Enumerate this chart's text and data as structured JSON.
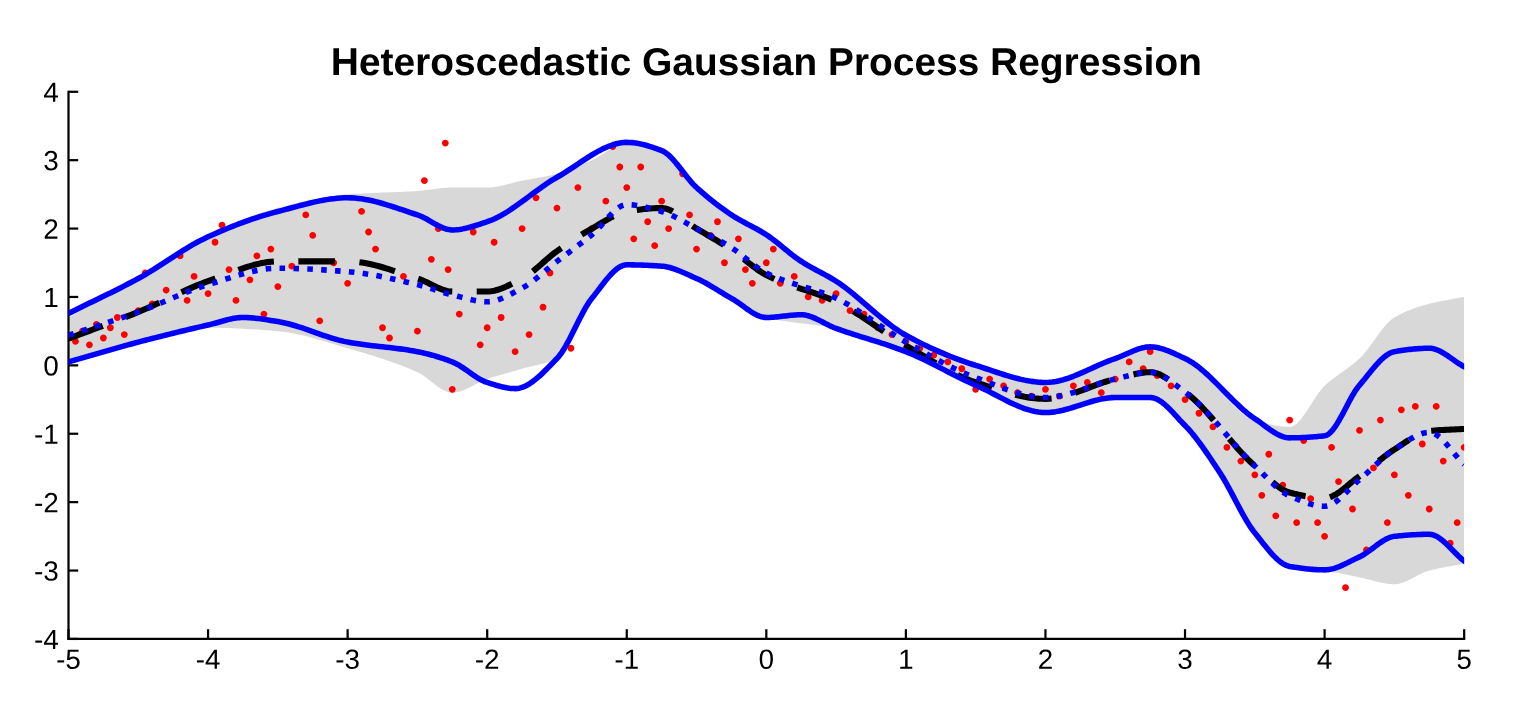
{
  "chart_data": {
    "type": "line",
    "title": "Heteroscedastic Gaussian Process Regression",
    "xlim": [
      -5,
      5
    ],
    "ylim": [
      -4,
      4
    ],
    "xticks": [
      -5,
      -4,
      -3,
      -2,
      -1,
      0,
      1,
      2,
      3,
      4,
      5
    ],
    "yticks": [
      -4,
      -3,
      -2,
      -1,
      0,
      1,
      2,
      3,
      4
    ],
    "grid": false,
    "legend": false,
    "series": [
      {
        "color": "#000000",
        "line_style": "dashed",
        "x": [
          -5,
          -4.5,
          -4,
          -3.5,
          -3,
          -2.5,
          -2.25,
          -2,
          -1.75,
          -1.5,
          -1.25,
          -1,
          -0.75,
          -0.5,
          -0.25,
          0,
          0.5,
          1,
          1.5,
          2,
          2.5,
          2.75,
          3,
          3.5,
          3.75,
          4,
          4.25,
          4.5,
          4.75,
          5
        ],
        "values": [
          0.39,
          0.78,
          1.23,
          1.52,
          1.52,
          1.27,
          1.08,
          1.08,
          1.27,
          1.67,
          2.0,
          2.25,
          2.3,
          2.0,
          1.69,
          1.32,
          0.93,
          0.29,
          -0.25,
          -0.49,
          -0.2,
          -0.1,
          -0.39,
          -1.47,
          -1.86,
          -1.94,
          -1.62,
          -1.23,
          -0.96,
          -0.93
        ],
        "lower": [
          0.05,
          0.34,
          0.55,
          0.5,
          0.25,
          -0.1,
          -0.4,
          -0.2,
          -0.05,
          0.1,
          0.98,
          1.45,
          1.45,
          1.27,
          0.98,
          0.7,
          0.54,
          0.2,
          -0.29,
          -0.7,
          -0.47,
          -0.47,
          -0.88,
          -2.45,
          -2.94,
          -3.0,
          -3.1,
          -3.2,
          -3.0,
          -2.9
        ],
        "upper": [
          0.7,
          1.27,
          1.9,
          2.3,
          2.5,
          2.55,
          2.6,
          2.6,
          2.7,
          2.8,
          3.0,
          3.25,
          3.14,
          2.6,
          2.2,
          1.9,
          1.23,
          0.45,
          0.0,
          -0.25,
          0.1,
          0.27,
          0.1,
          -0.8,
          -0.9,
          -0.3,
          0.1,
          0.7,
          0.9,
          1.0
        ]
      },
      {
        "color": "#0000ff",
        "line_style": "dotted",
        "x": [
          -5,
          -4.5,
          -4,
          -3.5,
          -3,
          -2.5,
          -2.25,
          -2,
          -1.75,
          -1.5,
          -1.25,
          -1,
          -0.75,
          -0.5,
          -0.25,
          0,
          0.5,
          1,
          1.5,
          2,
          2.5,
          2.75,
          3,
          3.5,
          3.75,
          4,
          4.25,
          4.5,
          4.75,
          5
        ],
        "values": [
          0.44,
          0.78,
          1.18,
          1.42,
          1.37,
          1.18,
          1.03,
          0.93,
          1.13,
          1.52,
          1.91,
          2.35,
          2.25,
          2.0,
          1.72,
          1.35,
          0.98,
          0.34,
          -0.18,
          -0.47,
          -0.2,
          -0.1,
          -0.39,
          -1.47,
          -1.91,
          -2.06,
          -1.67,
          -1.23,
          -0.98,
          -1.45
        ]
      },
      {
        "color": "#0000ff",
        "line_style": "solid",
        "x": [
          -5,
          -4.5,
          -4,
          -3.5,
          -3,
          -2.5,
          -2.25,
          -2,
          -1.5,
          -1,
          -0.75,
          -0.5,
          -0.25,
          0,
          0.25,
          0.5,
          1,
          1.5,
          2,
          2.5,
          2.75,
          3,
          3.5,
          3.75,
          4,
          4.25,
          4.5,
          4.75,
          5
        ],
        "values": [
          0.76,
          1.27,
          1.88,
          2.25,
          2.45,
          2.2,
          1.98,
          2.1,
          2.75,
          3.26,
          3.14,
          2.6,
          2.2,
          1.91,
          1.52,
          1.23,
          0.44,
          0.0,
          -0.25,
          0.1,
          0.27,
          0.1,
          -0.78,
          -1.06,
          -1.03,
          -0.29,
          0.2,
          0.25,
          -0.02
        ]
      },
      {
        "color": "#0000ff",
        "line_style": "solid",
        "x": [
          -5,
          -4.5,
          -4,
          -3.75,
          -3.5,
          -3,
          -2.5,
          -2.25,
          -2,
          -1.8,
          -1.5,
          -1.25,
          -1,
          -0.75,
          -0.5,
          -0.25,
          0,
          0.25,
          0.5,
          1,
          1.5,
          2,
          2.5,
          2.75,
          3,
          3.25,
          3.5,
          3.75,
          4,
          4.25,
          4.5,
          4.75,
          5
        ],
        "values": [
          0.05,
          0.34,
          0.59,
          0.7,
          0.64,
          0.34,
          0.2,
          0.05,
          -0.25,
          -0.34,
          0.1,
          0.98,
          1.47,
          1.45,
          1.27,
          0.98,
          0.7,
          0.74,
          0.54,
          0.2,
          -0.29,
          -0.69,
          -0.47,
          -0.47,
          -0.88,
          -1.57,
          -2.45,
          -2.94,
          -2.99,
          -2.8,
          -2.5,
          -2.47,
          -2.86
        ]
      },
      {
        "type": "scatter",
        "color": "#ff0000",
        "marker": "circle",
        "x": [
          -4.95,
          -4.9,
          -4.85,
          -4.8,
          -4.75,
          -4.7,
          -4.65,
          -4.6,
          -4.5,
          -4.45,
          -4.4,
          -4.3,
          -4.2,
          -4.15,
          -4.1,
          -4.0,
          -3.95,
          -3.9,
          -3.85,
          -3.8,
          -3.7,
          -3.65,
          -3.6,
          -3.55,
          -3.5,
          -3.4,
          -3.3,
          -3.25,
          -3.2,
          -3.1,
          -3.0,
          -2.9,
          -2.85,
          -2.8,
          -2.75,
          -2.7,
          -2.6,
          -2.5,
          -2.45,
          -2.4,
          -2.35,
          -2.3,
          -2.28,
          -2.25,
          -2.2,
          -2.1,
          -2.05,
          -2.0,
          -1.95,
          -1.9,
          -1.8,
          -1.75,
          -1.7,
          -1.65,
          -1.6,
          -1.55,
          -1.5,
          -1.4,
          -1.35,
          -1.25,
          -1.15,
          -1.1,
          -1.05,
          -1.0,
          -0.95,
          -0.9,
          -0.85,
          -0.8,
          -0.75,
          -0.7,
          -0.6,
          -0.55,
          -0.5,
          -0.4,
          -0.35,
          -0.3,
          -0.2,
          -0.15,
          -0.1,
          0.0,
          0.05,
          0.1,
          0.2,
          0.3,
          0.4,
          0.5,
          0.6,
          0.7,
          0.8,
          0.9,
          1.0,
          1.1,
          1.2,
          1.3,
          1.4,
          1.5,
          1.6,
          1.7,
          1.8,
          1.9,
          2.0,
          2.1,
          2.2,
          2.3,
          2.4,
          2.5,
          2.6,
          2.7,
          2.75,
          2.8,
          2.9,
          3.0,
          3.1,
          3.2,
          3.3,
          3.4,
          3.5,
          3.55,
          3.6,
          3.65,
          3.7,
          3.75,
          3.8,
          3.85,
          3.9,
          3.95,
          4.0,
          4.05,
          4.1,
          4.15,
          4.2,
          4.25,
          4.3,
          4.35,
          4.4,
          4.45,
          4.5,
          4.55,
          4.6,
          4.65,
          4.7,
          4.75,
          4.8,
          4.85,
          4.9,
          4.95,
          5.0
        ],
        "values": [
          0.35,
          0.5,
          0.3,
          0.6,
          0.4,
          0.55,
          0.7,
          0.45,
          0.8,
          1.35,
          0.9,
          1.1,
          1.6,
          0.95,
          1.3,
          1.05,
          1.8,
          2.05,
          1.4,
          0.95,
          1.25,
          1.6,
          0.75,
          1.7,
          1.15,
          1.45,
          2.2,
          1.9,
          0.65,
          1.5,
          1.2,
          2.25,
          1.95,
          1.7,
          0.55,
          0.4,
          1.3,
          0.5,
          2.7,
          1.55,
          2.0,
          3.25,
          1.4,
          -0.35,
          0.75,
          1.95,
          0.3,
          0.55,
          1.8,
          0.7,
          0.2,
          2.0,
          0.45,
          2.45,
          0.85,
          1.35,
          2.3,
          0.25,
          2.6,
          2.0,
          2.4,
          3.2,
          2.9,
          2.6,
          1.85,
          2.9,
          2.1,
          1.75,
          2.4,
          2.0,
          2.8,
          2.2,
          1.7,
          1.9,
          2.1,
          1.5,
          1.85,
          1.4,
          1.2,
          1.5,
          1.7,
          1.2,
          1.3,
          1.0,
          0.95,
          1.05,
          0.8,
          0.75,
          0.55,
          0.45,
          0.35,
          0.25,
          0.15,
          0.05,
          -0.05,
          -0.35,
          -0.2,
          -0.3,
          -0.4,
          -0.45,
          -0.35,
          -0.45,
          -0.3,
          -0.25,
          -0.4,
          -0.2,
          0.05,
          -0.05,
          0.2,
          -0.15,
          -0.3,
          -0.5,
          -0.7,
          -0.9,
          -1.2,
          -1.4,
          -1.6,
          -1.9,
          -1.3,
          -2.2,
          -1.75,
          -0.8,
          -2.3,
          -1.1,
          -1.95,
          -2.3,
          -2.5,
          -1.2,
          -1.7,
          -3.25,
          -2.1,
          -0.95,
          -2.7,
          -1.5,
          -0.8,
          -2.3,
          -1.6,
          -0.65,
          -1.9,
          -0.6,
          -1.15,
          -2.1,
          -0.6,
          -1.4,
          -2.6,
          -2.3,
          -1.2
        ]
      }
    ]
  }
}
